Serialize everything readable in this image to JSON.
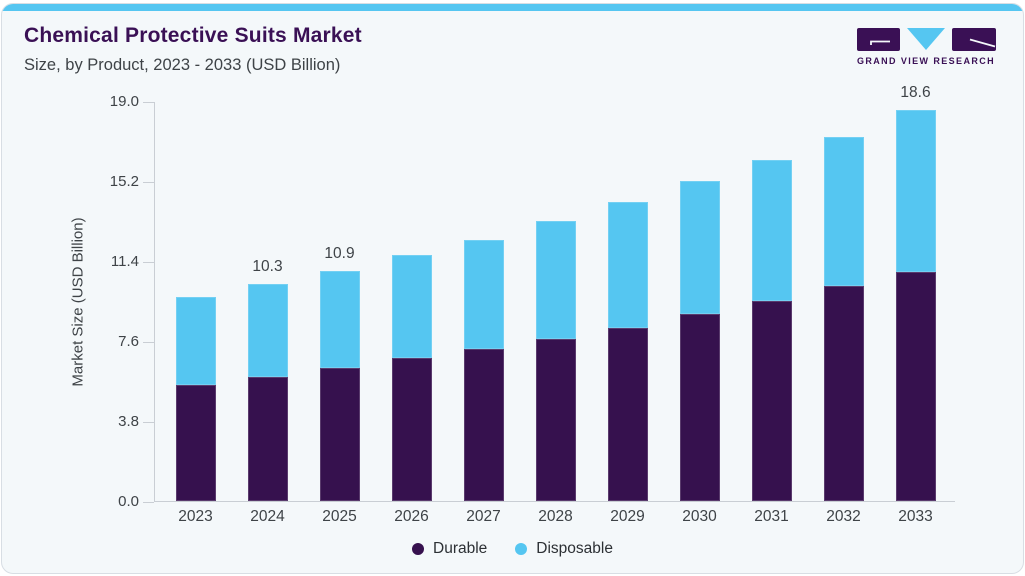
{
  "header": {
    "title": "Chemical Protective Suits Market",
    "subtitle": "Size, by Product, 2023 - 2033 (USD Billion)"
  },
  "logo": {
    "text": "GRAND VIEW RESEARCH"
  },
  "colors": {
    "accent_blue": "#55c6f1",
    "bar_purple": "#36114e",
    "title_purple": "#3a1055",
    "card_bg": "#f4f8fa",
    "axis_line": "#c9ced4",
    "text_dark": "#3e4347",
    "legend_text": "#2c3034",
    "card_border": "#d8dee4"
  },
  "chart_data": {
    "type": "bar",
    "stacked": true,
    "title": "Chemical Protective Suits Market",
    "subtitle": "Size, by Product, 2023 - 2033 (USD Billion)",
    "ylabel": "Market Size (USD Billion)",
    "xlabel": "",
    "categories": [
      "2023",
      "2024",
      "2025",
      "2026",
      "2027",
      "2028",
      "2029",
      "2030",
      "2031",
      "2032",
      "2033"
    ],
    "series": [
      {
        "name": "Durable",
        "color": "#36114e",
        "values": [
          5.5,
          5.9,
          6.3,
          6.8,
          7.2,
          7.7,
          8.2,
          8.9,
          9.5,
          10.2,
          10.9
        ]
      },
      {
        "name": "Disposable",
        "color": "#55c6f1",
        "values": [
          4.2,
          4.4,
          4.6,
          4.9,
          5.2,
          5.6,
          6.0,
          6.3,
          6.7,
          7.1,
          7.7
        ]
      }
    ],
    "totals": [
      9.7,
      10.3,
      10.9,
      11.7,
      12.4,
      13.3,
      14.2,
      15.2,
      16.2,
      17.3,
      18.6
    ],
    "bar_labels": [
      "",
      "10.3",
      "10.9",
      "",
      "",
      "",
      "",
      "",
      "",
      "",
      "18.6"
    ],
    "yticks": [
      "19.0",
      "15.2",
      "11.4",
      "7.6",
      "3.8",
      "0.0"
    ],
    "ylim": [
      0,
      19.0
    ],
    "grid": false,
    "legend_position": "bottom"
  }
}
